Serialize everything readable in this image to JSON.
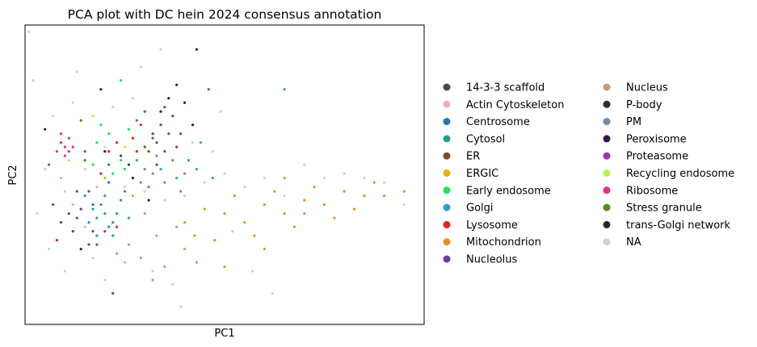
{
  "chart_data": {
    "type": "scatter",
    "title": "PCA plot with DC hein 2024 consensus annotation",
    "xlabel": "PC1",
    "ylabel": "PC2",
    "xlim": [
      -6,
      14
    ],
    "ylim": [
      -7,
      6.5
    ],
    "legend_position": "right, outside plot area, two columns",
    "grid": false,
    "series": [
      {
        "name": "14-3-3 scaffold",
        "color": "#484848",
        "points": [
          [
            -1.2,
            0.6
          ],
          [
            -0.8,
            0.2
          ]
        ]
      },
      {
        "name": "Actin Cytoskeleton",
        "color": "#f3a5c6",
        "points": [
          [
            -4.2,
            -0.4
          ],
          [
            -3.6,
            -1.6
          ],
          [
            -2.4,
            -0.8
          ],
          [
            -1.0,
            -4.2
          ],
          [
            -3.0,
            -2.6
          ]
        ]
      },
      {
        "name": "Centrosome",
        "color": "#1f77b4",
        "points": [
          [
            -2.6,
            -1.6
          ],
          [
            -1.8,
            -0.6
          ],
          [
            0.4,
            1.4
          ],
          [
            -3.0,
            0.8
          ],
          [
            3.2,
            3.6
          ]
        ]
      },
      {
        "name": "Cytosol",
        "color": "#1f9e99",
        "points": [
          [
            -2.4,
            -2.2
          ],
          [
            -2.0,
            -2.0
          ],
          [
            -1.6,
            -2.4
          ],
          [
            -2.2,
            -1.6
          ],
          [
            -1.4,
            -2.0
          ],
          [
            -2.8,
            -2.4
          ],
          [
            -1.8,
            -2.6
          ],
          [
            -2.6,
            -1.8
          ],
          [
            -1.2,
            -1.4
          ],
          [
            -3.0,
            -1.2
          ],
          [
            -2.0,
            -1.2
          ],
          [
            -1.6,
            -3.0
          ],
          [
            -2.4,
            -3.0
          ],
          [
            -0.8,
            -2.2
          ],
          [
            -1.0,
            -1.0
          ]
        ]
      },
      {
        "name": "ER",
        "color": "#7f4a2a",
        "points": [
          [
            0.6,
            1.2
          ],
          [
            1.2,
            1.6
          ],
          [
            1.0,
            0.8
          ],
          [
            0.2,
            0.8
          ],
          [
            1.6,
            1.0
          ],
          [
            0.8,
            2.0
          ],
          [
            0.4,
            1.6
          ],
          [
            1.4,
            2.4
          ],
          [
            0.0,
            1.0
          ],
          [
            1.8,
            1.6
          ],
          [
            1.0,
            2.8
          ],
          [
            0.6,
            0.2
          ]
        ]
      },
      {
        "name": "ERGIC",
        "color": "#e2b30e",
        "points": [
          [
            -2.0,
            -0.4
          ],
          [
            -0.6,
            -1.2
          ]
        ]
      },
      {
        "name": "Early endosome",
        "color": "#22e35a",
        "points": [
          [
            -1.8,
            1.6
          ],
          [
            -1.2,
            0.4
          ],
          [
            -2.4,
            1.2
          ],
          [
            -0.8,
            1.8
          ],
          [
            -1.6,
            -0.2
          ],
          [
            -2.2,
            2.0
          ],
          [
            -2.6,
            0.2
          ],
          [
            -1.0,
            0.0
          ],
          [
            -1.2,
            4.0
          ]
        ]
      },
      {
        "name": "Golgi",
        "color": "#2a9fd8",
        "points": [
          [
            0.8,
            0.0
          ],
          [
            2.2,
            0.4
          ],
          [
            -0.4,
            0.4
          ],
          [
            1.6,
            -0.4
          ],
          [
            2.8,
            1.2
          ],
          [
            3.4,
            -0.4
          ],
          [
            0.2,
            -0.8
          ],
          [
            2.6,
            0.0
          ],
          [
            7.0,
            3.6
          ]
        ]
      },
      {
        "name": "Lysosome",
        "color": "#d62728",
        "points": [
          [
            -1.4,
            1.2
          ],
          [
            -0.6,
            1.4
          ],
          [
            -0.2,
            2.0
          ],
          [
            -1.8,
            0.8
          ],
          [
            -2.2,
            -0.2
          ],
          [
            -0.4,
            0.8
          ],
          [
            -4.4,
            -3.2
          ],
          [
            0.0,
            2.6
          ]
        ]
      },
      {
        "name": "Mitochondrion",
        "color": "#ef8c2a",
        "points": [
          [
            3.0,
            -1.8
          ],
          [
            4.0,
            -2.0
          ],
          [
            5.0,
            -2.4
          ],
          [
            6.0,
            -1.6
          ],
          [
            7.0,
            -2.0
          ],
          [
            8.0,
            -1.4
          ],
          [
            9.0,
            -1.6
          ],
          [
            10.0,
            -1.0
          ],
          [
            11.0,
            -1.2
          ],
          [
            12.0,
            -1.2
          ],
          [
            13.0,
            -1.0
          ],
          [
            6.5,
            -1.0
          ],
          [
            7.5,
            -2.6
          ],
          [
            8.5,
            -0.8
          ],
          [
            5.5,
            -3.0
          ],
          [
            4.5,
            -1.2
          ],
          [
            3.5,
            -3.2
          ],
          [
            2.5,
            -3.0
          ],
          [
            9.5,
            -2.2
          ],
          [
            10.5,
            -1.8
          ],
          [
            11.5,
            -0.6
          ],
          [
            6.0,
            -3.6
          ],
          [
            4.0,
            -4.4
          ],
          [
            8.0,
            -2.0
          ],
          [
            7.0,
            -0.4
          ],
          [
            2.0,
            -2.4
          ]
        ]
      },
      {
        "name": "Nucleolus",
        "color": "#6a3d9a",
        "points": [
          [
            -3.8,
            -2.0
          ],
          [
            -3.2,
            -1.8
          ],
          [
            -2.6,
            -2.8
          ],
          [
            -3.6,
            -2.8
          ],
          [
            -4.2,
            -2.4
          ],
          [
            -2.8,
            -3.4
          ],
          [
            -3.4,
            -1.0
          ],
          [
            -1.6,
            -5.6
          ],
          [
            -4.6,
            -1.6
          ]
        ]
      },
      {
        "name": "Nucleus",
        "color": "#c79a75",
        "points": [
          [
            -0.8,
            -3.4
          ],
          [
            0.6,
            -3.0
          ],
          [
            1.6,
            -2.6
          ],
          [
            -0.2,
            -4.0
          ],
          [
            1.0,
            -4.4
          ],
          [
            2.0,
            -3.6
          ],
          [
            0.0,
            -2.0
          ],
          [
            -1.4,
            -3.8
          ],
          [
            2.6,
            -4.2
          ],
          [
            0.4,
            -5.0
          ]
        ]
      },
      {
        "name": "P-body",
        "color": "#2b2b2b",
        "points": [
          [
            -2.2,
            3.6
          ],
          [
            -5.0,
            1.8
          ],
          [
            -3.2,
            -3.6
          ],
          [
            2.6,
            5.4
          ]
        ]
      },
      {
        "name": "PM",
        "color": "#7289aa",
        "points": [
          [
            0.4,
            -0.2
          ],
          [
            1.0,
            -0.6
          ],
          [
            1.4,
            0.4
          ],
          [
            -0.2,
            -0.6
          ],
          [
            2.0,
            -0.2
          ],
          [
            0.6,
            0.6
          ],
          [
            1.8,
            -1.0
          ],
          [
            0.0,
            0.0
          ]
        ]
      },
      {
        "name": "Peroxisome",
        "color": "#3b1553",
        "points": [
          [
            1.2,
            3.2
          ],
          [
            2.0,
            3.0
          ],
          [
            1.6,
            3.8
          ],
          [
            0.8,
            2.6
          ],
          [
            2.4,
            2.0
          ]
        ]
      },
      {
        "name": "Proteasome",
        "color": "#9b30b8",
        "points": [
          [
            -2.8,
            -1.0
          ],
          [
            -2.0,
            -2.8
          ],
          [
            -3.4,
            -2.2
          ],
          [
            -1.4,
            -2.6
          ],
          [
            -2.4,
            -3.4
          ]
        ]
      },
      {
        "name": "Recycling endosome",
        "color": "#b6f542",
        "points": [
          [
            -3.8,
            0.4
          ],
          [
            -1.0,
            1.0
          ],
          [
            -2.6,
            2.4
          ]
        ]
      },
      {
        "name": "Ribosome",
        "color": "#df2f86",
        "points": [
          [
            -4.2,
            1.2
          ],
          [
            -4.0,
            1.0
          ],
          [
            -3.8,
            1.4
          ],
          [
            -4.0,
            0.6
          ],
          [
            -3.6,
            1.0
          ],
          [
            -4.4,
            0.8
          ],
          [
            -3.8,
            0.8
          ],
          [
            -4.2,
            1.6
          ]
        ]
      },
      {
        "name": "Stress granule",
        "color": "#4f8c1f",
        "points": [
          [
            -4.8,
            0.2
          ],
          [
            -3.2,
            2.2
          ],
          [
            -1.8,
            0.2
          ],
          [
            -0.4,
            2.2
          ],
          [
            -3.0,
            0.4
          ]
        ]
      },
      {
        "name": "trans-Golgi network",
        "color": "#272727",
        "points": [
          [
            -0.6,
            -0.4
          ],
          [
            -2.0,
            0.8
          ],
          [
            0.2,
            -1.4
          ]
        ]
      },
      {
        "name": "NA",
        "color": "#cfcfcf",
        "points": [
          [
            -5.0,
            0.0
          ],
          [
            -4.0,
            -1.0
          ],
          [
            -3.0,
            0.0
          ],
          [
            -2.0,
            1.0
          ],
          [
            -1.0,
            -0.8
          ],
          [
            0.0,
            -1.0
          ],
          [
            1.0,
            -1.4
          ],
          [
            2.0,
            -1.2
          ],
          [
            3.0,
            -0.6
          ],
          [
            4.0,
            -0.2
          ],
          [
            5.0,
            -0.8
          ],
          [
            6.0,
            -0.4
          ],
          [
            7.0,
            -1.2
          ],
          [
            8.0,
            0.2
          ],
          [
            9.0,
            -0.4
          ],
          [
            10.0,
            -0.2
          ],
          [
            11.0,
            -0.4
          ],
          [
            12.0,
            -0.6
          ],
          [
            13.0,
            -1.6
          ],
          [
            -5.4,
            -2.0
          ],
          [
            -4.6,
            2.4
          ],
          [
            -3.6,
            3.0
          ],
          [
            -2.6,
            -4.0
          ],
          [
            -1.6,
            2.8
          ],
          [
            -0.6,
            3.2
          ],
          [
            0.4,
            -4.6
          ],
          [
            1.4,
            -5.2
          ],
          [
            2.4,
            1.2
          ],
          [
            3.4,
            0.8
          ],
          [
            4.4,
            -2.8
          ],
          [
            5.4,
            -4.6
          ],
          [
            6.4,
            -5.6
          ],
          [
            -5.6,
            4.0
          ],
          [
            -4.8,
            -3.6
          ],
          [
            -3.4,
            4.4
          ],
          [
            -0.2,
            4.6
          ],
          [
            1.8,
            -6.2
          ],
          [
            3.8,
            2.6
          ],
          [
            -4.0,
            -4.6
          ],
          [
            -2.0,
            -5.0
          ],
          [
            0.8,
            5.4
          ],
          [
            -5.8,
            6.2
          ]
        ]
      }
    ]
  }
}
